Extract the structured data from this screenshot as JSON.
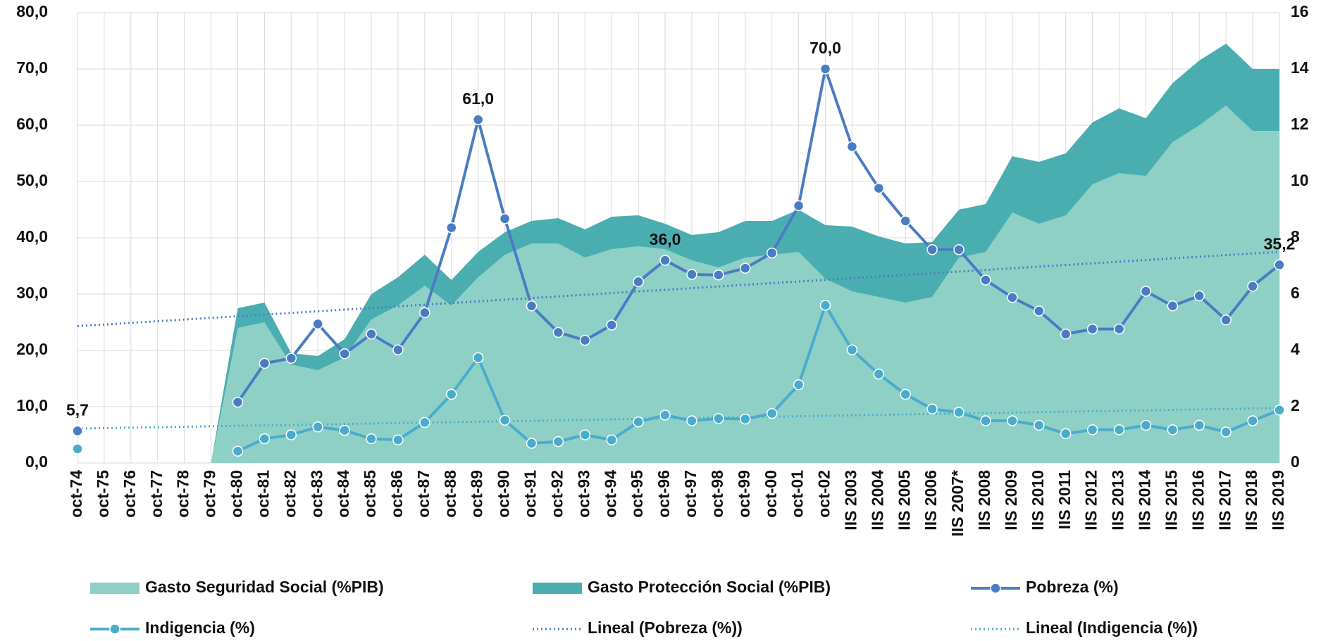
{
  "chart_data": {
    "type": "combo",
    "categories": [
      "oct-74",
      "oct-75",
      "oct-76",
      "oct-77",
      "oct-78",
      "oct-79",
      "oct-80",
      "oct-81",
      "oct-82",
      "oct-83",
      "oct-84",
      "oct-85",
      "oct-86",
      "oct-87",
      "oct-88",
      "oct-89",
      "oct-90",
      "oct-91",
      "oct-92",
      "oct-93",
      "oct-94",
      "oct-95",
      "oct-96",
      "oct-97",
      "oct-98",
      "oct-99",
      "oct-00",
      "oct-01",
      "oct-02",
      "IIS 2003",
      "IIS 2004",
      "IIS 2005",
      "IIS 2006",
      "IIS 2007*",
      "IIS 2008",
      "IIS 2009",
      "IIS 2010",
      "IIS 2011",
      "IIS 2012",
      "IIS 2013",
      "IIS 2014",
      "IIS 2015",
      "IIS 2016",
      "IIS 2017",
      "IIS 2018",
      "IIS 2019"
    ],
    "ylim": [
      0,
      80
    ],
    "yticks": [
      {
        "value": 0,
        "label": "0,0"
      },
      {
        "value": 10,
        "label": "10,0"
      },
      {
        "value": 20,
        "label": "20,0"
      },
      {
        "value": 30,
        "label": "30,0"
      },
      {
        "value": 40,
        "label": "40,0"
      },
      {
        "value": 50,
        "label": "50,0"
      },
      {
        "value": 60,
        "label": "60,0"
      },
      {
        "value": 70,
        "label": "70,0"
      },
      {
        "value": 80,
        "label": "80,0"
      }
    ],
    "y2lim": [
      0,
      16
    ],
    "y2ticks": [
      0,
      2,
      4,
      6,
      8,
      10,
      12,
      14,
      16
    ],
    "grid": true,
    "legend": "bottom",
    "series": [
      {
        "name": "Gasto Seguridad Social (%PIB)",
        "type": "area",
        "axis": "y2",
        "color": "#8ed0c6",
        "values": [
          null,
          null,
          null,
          null,
          null,
          0,
          4.8,
          5.0,
          3.5,
          3.3,
          3.75,
          5.1,
          5.6,
          6.3,
          5.6,
          6.6,
          7.4,
          7.8,
          7.8,
          7.3,
          7.6,
          7.7,
          7.6,
          7.2,
          6.95,
          7.3,
          7.4,
          7.5,
          6.55,
          6.1,
          5.9,
          5.7,
          5.9,
          7.3,
          7.5,
          8.9,
          8.5,
          8.8,
          9.9,
          10.3,
          10.2,
          11.4,
          12.0,
          12.7,
          11.8,
          11.8
        ]
      },
      {
        "name": "Gasto Protección Social (%PIB)",
        "type": "area",
        "axis": "y2",
        "color": "#4aaeb1",
        "values": [
          null,
          null,
          null,
          null,
          null,
          0,
          5.5,
          5.7,
          3.9,
          3.8,
          4.4,
          6.0,
          6.6,
          7.4,
          6.5,
          7.5,
          8.2,
          8.6,
          8.7,
          8.3,
          8.75,
          8.8,
          8.5,
          8.1,
          8.2,
          8.6,
          8.6,
          9.0,
          8.45,
          8.4,
          8.05,
          7.8,
          7.85,
          9.0,
          9.2,
          10.9,
          10.7,
          11.0,
          12.1,
          12.6,
          12.25,
          13.5,
          14.3,
          14.9,
          14.0,
          14.0
        ]
      },
      {
        "name": "Pobreza (%)",
        "type": "line",
        "color": "#4a7cc2",
        "values": [
          5.7,
          null,
          null,
          null,
          null,
          null,
          10.8,
          17.7,
          18.6,
          24.7,
          19.4,
          22.9,
          20.1,
          26.7,
          41.8,
          61.0,
          43.4,
          27.9,
          23.2,
          21.8,
          24.5,
          32.2,
          36.0,
          33.5,
          33.4,
          34.6,
          37.3,
          45.7,
          70.0,
          56.2,
          48.8,
          43.0,
          37.9,
          37.9,
          32.5,
          29.4,
          27.0,
          22.9,
          23.8,
          23.8,
          30.5,
          27.9,
          29.7,
          25.4,
          31.4,
          35.2
        ],
        "value_labels": [
          "5,7",
          null,
          null,
          null,
          null,
          null,
          null,
          null,
          null,
          null,
          null,
          null,
          null,
          null,
          null,
          "61,0",
          null,
          null,
          null,
          null,
          null,
          null,
          "36,0",
          null,
          null,
          null,
          null,
          null,
          "70,0",
          null,
          null,
          null,
          null,
          null,
          null,
          null,
          null,
          null,
          null,
          null,
          null,
          null,
          null,
          null,
          null,
          "35,2"
        ],
        "trendline": {
          "name": "Lineal (Pobreza (%))",
          "style": "dotted"
        }
      },
      {
        "name": "Indigencia (%)",
        "type": "line",
        "color": "#4aaccc",
        "values": [
          2.5,
          null,
          null,
          null,
          null,
          null,
          2.1,
          4.3,
          5.0,
          6.4,
          5.8,
          4.3,
          4.1,
          7.2,
          12.2,
          18.7,
          7.6,
          3.5,
          3.8,
          5.0,
          4.1,
          7.3,
          8.5,
          7.5,
          7.9,
          7.8,
          8.8,
          13.9,
          28.0,
          20.1,
          15.8,
          12.2,
          9.6,
          9.0,
          7.5,
          7.5,
          6.7,
          5.2,
          5.9,
          5.9,
          6.7,
          5.9,
          6.7,
          5.5,
          7.5,
          9.4
        ],
        "trendline": {
          "name": "Lineal (Indigencia (%))",
          "style": "dotted"
        }
      }
    ]
  }
}
